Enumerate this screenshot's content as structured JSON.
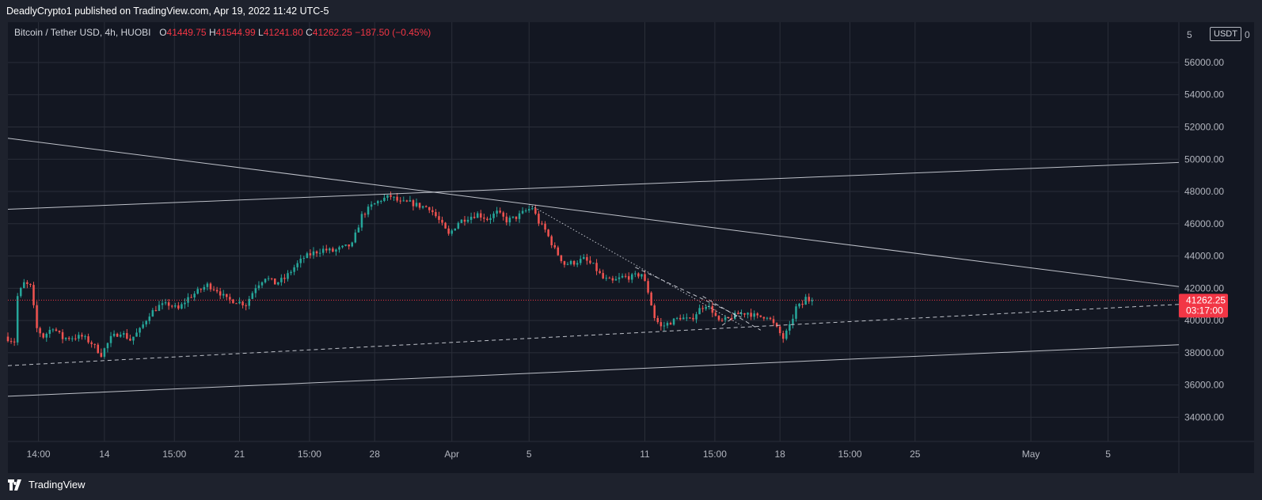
{
  "header": {
    "published_text": "DeadlyCrypto1 published on TradingView.com, Apr 19, 2022 11:42 UTC-5"
  },
  "legend": {
    "symbol": "Bitcoin / Tether USD, 4h, HUOBI",
    "open_label": "O",
    "open": "41449.75",
    "high_label": "H",
    "high": "41544.99",
    "low_label": "L",
    "low": "41241.80",
    "close_label": "C",
    "close": "41262.25",
    "change": "−187.50 (−0.45%)"
  },
  "price_axis": {
    "currency": "USDT",
    "top_partial_label": "5",
    "top_partial_suffix": "0"
  },
  "last_price": {
    "price": "41262.25",
    "countdown": "03:17:00"
  },
  "footer": {
    "brand": "TradingView"
  },
  "colors": {
    "up": "#26a69a",
    "down": "#ef5350",
    "grid": "#2a2e39",
    "background": "#131722",
    "price_line": "#f23645",
    "lines": "#d1d4dc"
  },
  "chart_data": {
    "type": "candlestick",
    "timeframe": "4h",
    "ylim": [
      32500,
      58500
    ],
    "y_ticks": [
      34000,
      36000,
      38000,
      40000,
      42000,
      44000,
      46000,
      48000,
      50000,
      52000,
      54000,
      56000
    ],
    "y_tick_labels": [
      "34000.00",
      "36000.00",
      "38000.00",
      "40000.00",
      "42000.00",
      "44000.00",
      "46000.00",
      "48000.00",
      "50000.00",
      "52000.00",
      "54000.00",
      "56000.00"
    ],
    "x_range": [
      "2022-03-09 00:00",
      "2022-05-08 16:00"
    ],
    "x_ticks": [
      {
        "label": "14:00",
        "date": "2022-03-10 14:00"
      },
      {
        "label": "14",
        "date": "2022-03-14 00:00"
      },
      {
        "label": "15:00",
        "date": "2022-03-17 15:00"
      },
      {
        "label": "21",
        "date": "2022-03-21 00:00"
      },
      {
        "label": "15:00",
        "date": "2022-03-24 15:00"
      },
      {
        "label": "28",
        "date": "2022-03-28 00:00"
      },
      {
        "label": "Apr",
        "date": "2022-04-01 00:00"
      },
      {
        "label": "5",
        "date": "2022-04-05 00:00"
      },
      {
        "label": "11",
        "date": "2022-04-11 00:00"
      },
      {
        "label": "15:00",
        "date": "2022-04-14 15:00"
      },
      {
        "label": "18",
        "date": "2022-04-18 00:00"
      },
      {
        "label": "15:00",
        "date": "2022-04-21 15:00"
      },
      {
        "label": "25",
        "date": "2022-04-25 00:00"
      },
      {
        "label": "May",
        "date": "2022-05-01 00:00"
      },
      {
        "label": "5",
        "date": "2022-05-05 00:00"
      }
    ],
    "price_path": [
      [
        "2022-03-09 00:00",
        39000
      ],
      [
        "2022-03-09 12:00",
        38700
      ],
      [
        "2022-03-09 16:00",
        41500
      ],
      [
        "2022-03-10 00:00",
        42300
      ],
      [
        "2022-03-10 08:00",
        42100
      ],
      [
        "2022-03-10 16:00",
        39500
      ],
      [
        "2022-03-11 00:00",
        39000
      ],
      [
        "2022-03-11 12:00",
        39600
      ],
      [
        "2022-03-12 00:00",
        38900
      ],
      [
        "2022-03-13 00:00",
        39000
      ],
      [
        "2022-03-13 12:00",
        38600
      ],
      [
        "2022-03-14 00:00",
        37900
      ],
      [
        "2022-03-14 12:00",
        38900
      ],
      [
        "2022-03-15 00:00",
        39300
      ],
      [
        "2022-03-15 12:00",
        38800
      ],
      [
        "2022-03-16 00:00",
        39400
      ],
      [
        "2022-03-16 12:00",
        40400
      ],
      [
        "2022-03-17 00:00",
        40900
      ],
      [
        "2022-03-17 12:00",
        41000
      ],
      [
        "2022-03-18 00:00",
        40700
      ],
      [
        "2022-03-18 12:00",
        41400
      ],
      [
        "2022-03-19 00:00",
        41800
      ],
      [
        "2022-03-19 12:00",
        42200
      ],
      [
        "2022-03-20 00:00",
        41900
      ],
      [
        "2022-03-20 12:00",
        41300
      ],
      [
        "2022-03-21 00:00",
        41200
      ],
      [
        "2022-03-21 12:00",
        41000
      ],
      [
        "2022-03-22 00:00",
        42100
      ],
      [
        "2022-03-22 12:00",
        42700
      ],
      [
        "2022-03-23 00:00",
        42300
      ],
      [
        "2022-03-23 12:00",
        42600
      ],
      [
        "2022-03-24 00:00",
        43300
      ],
      [
        "2022-03-24 12:00",
        43900
      ],
      [
        "2022-03-25 00:00",
        44200
      ],
      [
        "2022-03-25 12:00",
        44400
      ],
      [
        "2022-03-26 00:00",
        44300
      ],
      [
        "2022-03-26 12:00",
        44500
      ],
      [
        "2022-03-27 00:00",
        44700
      ],
      [
        "2022-03-27 12:00",
        46500
      ],
      [
        "2022-03-28 00:00",
        47100
      ],
      [
        "2022-03-28 12:00",
        47500
      ],
      [
        "2022-03-29 00:00",
        47700
      ],
      [
        "2022-03-29 12:00",
        47300
      ],
      [
        "2022-03-30 00:00",
        47300
      ],
      [
        "2022-03-30 12:00",
        47100
      ],
      [
        "2022-03-31 00:00",
        47000
      ],
      [
        "2022-03-31 12:00",
        46200
      ],
      [
        "2022-04-01 00:00",
        45300
      ],
      [
        "2022-04-01 12:00",
        46100
      ],
      [
        "2022-04-02 00:00",
        46400
      ],
      [
        "2022-04-02 12:00",
        46600
      ],
      [
        "2022-04-03 00:00",
        46300
      ],
      [
        "2022-04-03 12:00",
        46700
      ],
      [
        "2022-04-04 00:00",
        46200
      ],
      [
        "2022-04-04 12:00",
        46400
      ],
      [
        "2022-04-05 00:00",
        46800
      ],
      [
        "2022-04-05 08:00",
        47000
      ],
      [
        "2022-04-05 16:00",
        46100
      ],
      [
        "2022-04-06 00:00",
        45600
      ],
      [
        "2022-04-06 12:00",
        44400
      ],
      [
        "2022-04-07 00:00",
        43500
      ],
      [
        "2022-04-07 12:00",
        43600
      ],
      [
        "2022-04-08 00:00",
        43800
      ],
      [
        "2022-04-08 12:00",
        43400
      ],
      [
        "2022-04-09 00:00",
        42600
      ],
      [
        "2022-04-09 12:00",
        42400
      ],
      [
        "2022-04-10 00:00",
        42700
      ],
      [
        "2022-04-10 12:00",
        42700
      ],
      [
        "2022-04-11 00:00",
        42900
      ],
      [
        "2022-04-11 08:00",
        41800
      ],
      [
        "2022-04-11 16:00",
        40200
      ],
      [
        "2022-04-12 00:00",
        39600
      ],
      [
        "2022-04-12 12:00",
        39900
      ],
      [
        "2022-04-13 00:00",
        40200
      ],
      [
        "2022-04-13 12:00",
        40000
      ],
      [
        "2022-04-14 00:00",
        40700
      ],
      [
        "2022-04-14 08:00",
        41000
      ],
      [
        "2022-04-14 16:00",
        40600
      ],
      [
        "2022-04-15 00:00",
        39900
      ],
      [
        "2022-04-15 12:00",
        40100
      ],
      [
        "2022-04-16 00:00",
        40400
      ],
      [
        "2022-04-16 12:00",
        40500
      ],
      [
        "2022-04-17 00:00",
        40200
      ],
      [
        "2022-04-17 12:00",
        40300
      ],
      [
        "2022-04-18 00:00",
        39500
      ],
      [
        "2022-04-18 08:00",
        38900
      ],
      [
        "2022-04-18 16:00",
        39600
      ],
      [
        "2022-04-19 00:00",
        40800
      ],
      [
        "2022-04-19 08:00",
        41000
      ],
      [
        "2022-04-19 12:00",
        41400
      ],
      [
        "2022-04-19 16:00",
        41262
      ]
    ],
    "trend_lines": [
      {
        "style": "solid",
        "from": [
          "2022-03-09 00:00",
          51300
        ],
        "to": [
          "2022-05-08 16:00",
          42100
        ]
      },
      {
        "style": "solid",
        "from": [
          "2022-03-09 00:00",
          46900
        ],
        "to": [
          "2022-05-08 16:00",
          49800
        ]
      },
      {
        "style": "solid",
        "from": [
          "2022-03-09 00:00",
          35300
        ],
        "to": [
          "2022-05-08 16:00",
          38500
        ]
      },
      {
        "style": "dashed",
        "from": [
          "2022-03-09 00:00",
          37200
        ],
        "to": [
          "2022-05-08 16:00",
          41000
        ]
      },
      {
        "style": "dotted",
        "from": [
          "2022-04-05 00:00",
          47200
        ],
        "to": [
          "2022-04-16 00:00",
          39700
        ]
      },
      {
        "style": "dashed",
        "from": [
          "2022-04-10 12:00",
          43300
        ],
        "to": [
          "2022-04-16 00:00",
          40200
        ]
      },
      {
        "style": "dashed",
        "from": [
          "2022-04-15 00:00",
          39700
        ],
        "to": [
          "2022-04-16 00:00",
          40500
        ]
      },
      {
        "style": "dashed",
        "from": [
          "2022-04-14 00:00",
          41500
        ],
        "to": [
          "2022-04-17 00:00",
          39400
        ]
      }
    ],
    "last_price": 41262.25
  }
}
